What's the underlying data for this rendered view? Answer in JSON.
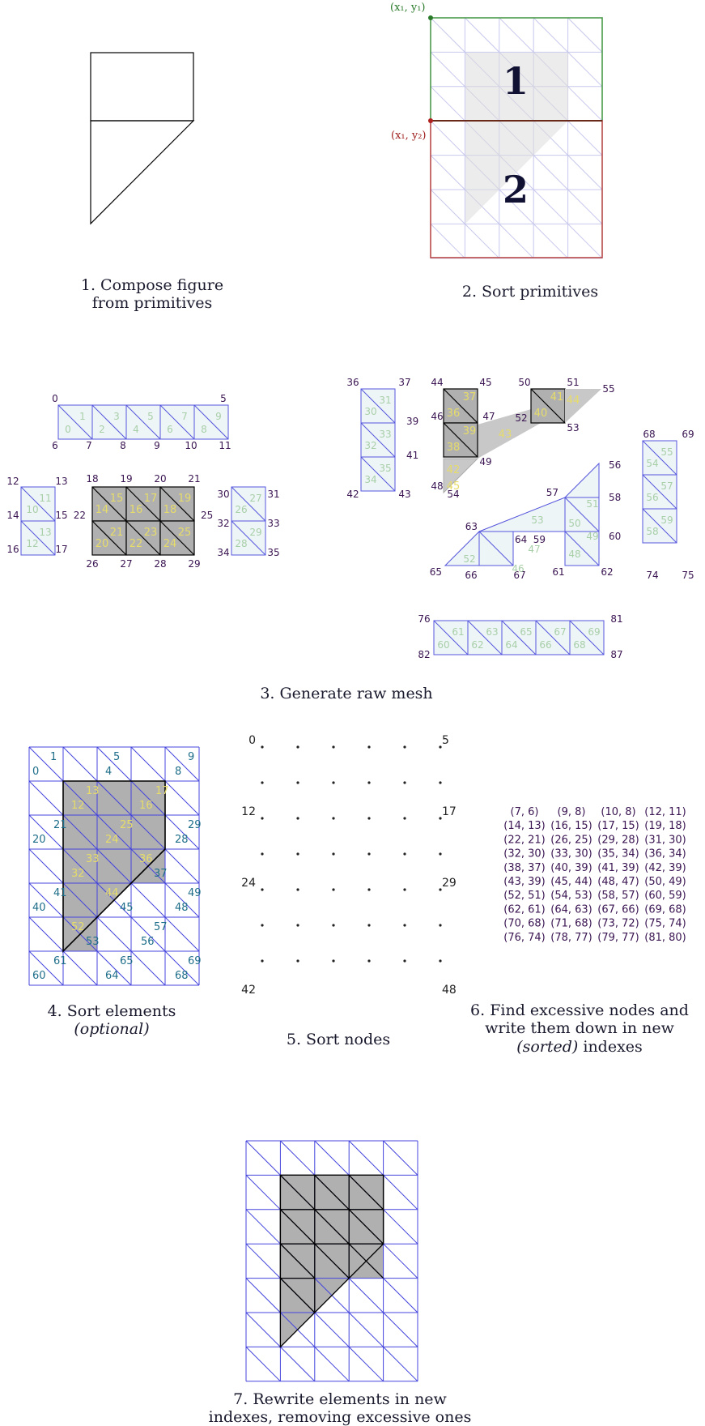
{
  "steps": {
    "s1_line1": "1. Compose figure",
    "s1_line2": "from primitives",
    "s2": "2. Sort primitives",
    "s3": "3. Generate raw mesh",
    "s4_line1": "4. Sort elements",
    "s4_line2": "(optional)",
    "s5": "5. Sort nodes",
    "s6_line1": "6. Find excessive nodes and",
    "s6_line2": "write them down in new",
    "s6_line3_italic": "(sorted)",
    "s6_line3_rest": " indexes",
    "s7_line1": "7. Rewrite elements in new",
    "s7_line2": "indexes, removing excessive ones"
  },
  "panel2": {
    "point1": "(x₁, y₁)",
    "point2": "(x₁, y₂)",
    "primitive1": "1",
    "primitive2": "2"
  },
  "panel5": {
    "labels": [
      "0",
      "5",
      "12",
      "17",
      "24",
      "29",
      "42",
      "48"
    ]
  },
  "panel6": {
    "pairs": [
      [
        "(7, 6)",
        "(9, 8)",
        "(10, 8)",
        "(12, 11)"
      ],
      [
        "(14, 13)",
        "(16, 15)",
        "(17, 15)",
        "(19, 18)"
      ],
      [
        "(22, 21)",
        "(26, 25)",
        "(29, 28)",
        "(31, 30)"
      ],
      [
        "(32, 30)",
        "(33, 30)",
        "(35, 34)",
        "(36, 34)"
      ],
      [
        "(38, 37)",
        "(40, 39)",
        "(41, 39)",
        "(42, 39)"
      ],
      [
        "(43, 39)",
        "(45, 44)",
        "(48, 47)",
        "(50, 49)"
      ],
      [
        "(52, 51)",
        "(54, 53)",
        "(58, 57)",
        "(60, 59)"
      ],
      [
        "(62, 61)",
        "(64, 63)",
        "(67, 66)",
        "(69, 68)"
      ],
      [
        "(70, 68)",
        "(71, 68)",
        "(73, 72)",
        "(75, 74)"
      ],
      [
        "(76, 74)",
        "(78, 77)",
        "(79, 77)",
        "(81, 80)"
      ]
    ]
  },
  "panel3": {
    "nodes": [
      "0",
      "5",
      "6",
      "7",
      "8",
      "9",
      "10",
      "11",
      "12",
      "13",
      "14",
      "15",
      "16",
      "17",
      "18",
      "19",
      "20",
      "21",
      "22",
      "25",
      "26",
      "27",
      "28",
      "29",
      "30",
      "31",
      "32",
      "33",
      "34",
      "35",
      "36",
      "37",
      "39",
      "41",
      "42",
      "43",
      "44",
      "45",
      "46",
      "47",
      "48",
      "49",
      "50",
      "51",
      "52",
      "53",
      "54",
      "55",
      "56",
      "57",
      "58",
      "59",
      "60",
      "61",
      "62",
      "63",
      "64",
      "65",
      "66",
      "67",
      "68",
      "69",
      "74",
      "75",
      "76",
      "81",
      "82",
      "87"
    ],
    "elements": [
      "0",
      "1",
      "2",
      "3",
      "4",
      "5",
      "6",
      "7",
      "8",
      "9",
      "10",
      "11",
      "12",
      "13",
      "14",
      "15",
      "16",
      "17",
      "18",
      "19",
      "20",
      "21",
      "22",
      "23",
      "24",
      "25",
      "26",
      "27",
      "28",
      "29",
      "30",
      "31",
      "32",
      "33",
      "34",
      "35",
      "36",
      "37",
      "38",
      "39",
      "40",
      "41",
      "42",
      "43",
      "44",
      "45",
      "46",
      "47",
      "48",
      "49",
      "50",
      "51",
      "52",
      "53",
      "54",
      "55",
      "56",
      "57",
      "58",
      "59",
      "60",
      "61",
      "62",
      "63",
      "64",
      "65",
      "66",
      "67",
      "68",
      "69"
    ]
  },
  "panel4": {
    "node_labels": [
      "0",
      "1",
      "4",
      "5",
      "8",
      "9",
      "20",
      "21",
      "28",
      "29",
      "37",
      "40",
      "41",
      "45",
      "48",
      "49",
      "53",
      "56",
      "57",
      "60",
      "61",
      "64",
      "65",
      "68",
      "69"
    ],
    "element_labels": [
      "12",
      "13",
      "16",
      "17",
      "24",
      "25",
      "32",
      "33",
      "36",
      "44",
      "52"
    ]
  }
}
